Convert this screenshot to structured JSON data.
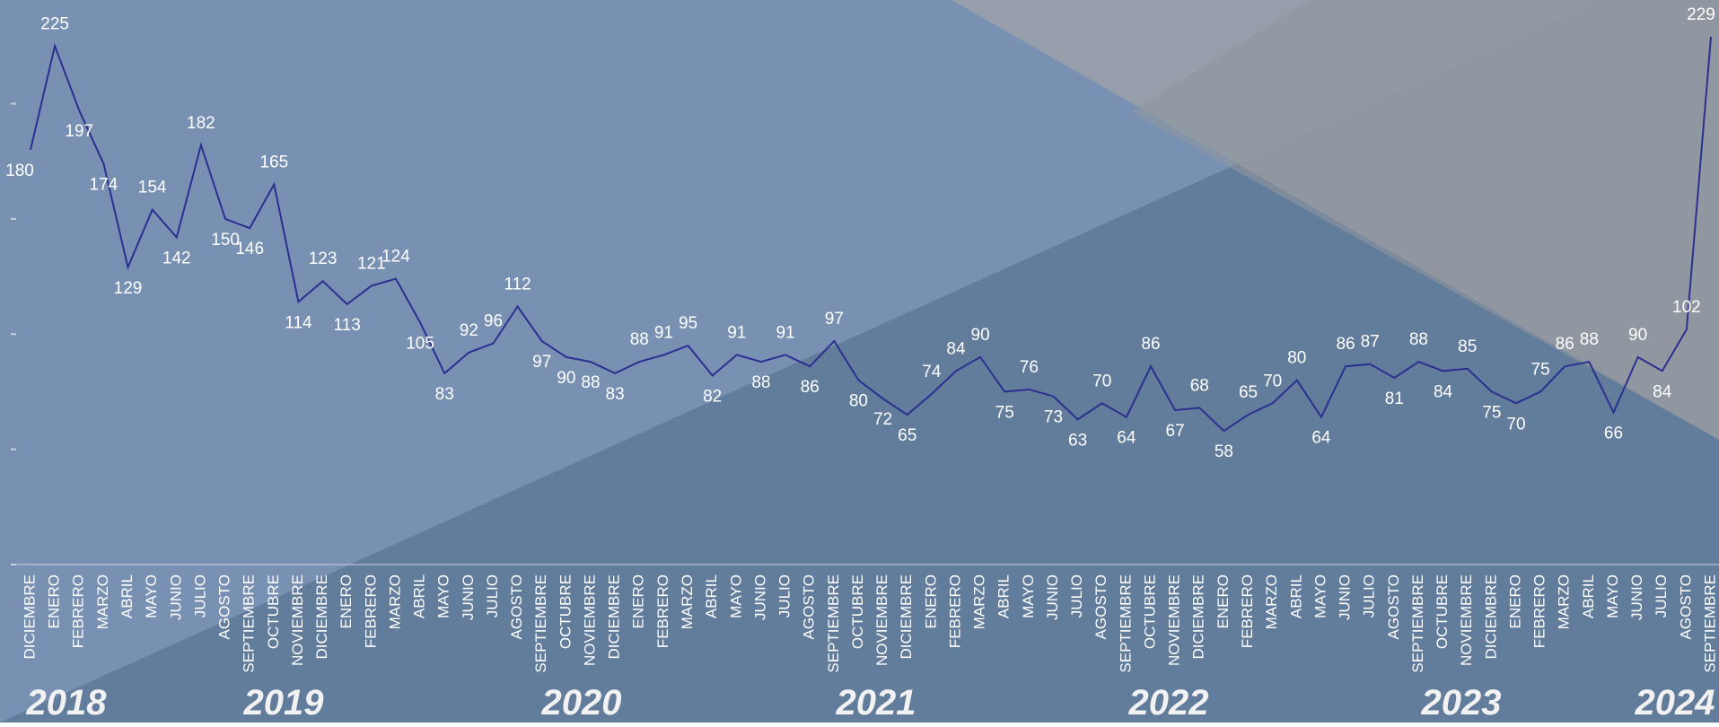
{
  "chart_data": {
    "type": "line",
    "color": "#2b2f8f",
    "categories": [
      "DICIEMBRE",
      "ENERO",
      "FEBRERO",
      "MARZO",
      "ABRIL",
      "MAYO",
      "JUNIO",
      "JULIO",
      "AGOSTO",
      "SEPTIEMBRE",
      "OCTUBRE",
      "NOVIEMBRE",
      "DICIEMBRE",
      "ENERO",
      "FEBRERO",
      "MARZO",
      "ABRIL",
      "MAYO",
      "JUNIO",
      "JULIO",
      "AGOSTO",
      "SEPTIEMBRE",
      "OCTUBRE",
      "NOVIEMBRE",
      "DICIEMBRE",
      "ENERO",
      "FEBRERO",
      "MARZO",
      "ABRIL",
      "MAYO",
      "JUNIO",
      "JULIO",
      "AGOSTO",
      "SEPTIEMBRE",
      "OCTUBRE",
      "NOVIEMBRE",
      "DICIEMBRE",
      "ENERO",
      "FEBRERO",
      "MARZO",
      "ABRIL",
      "MAYO",
      "JUNIO",
      "JULIO",
      "AGOSTO",
      "SEPTIEMBRE",
      "OCTUBRE",
      "NOVIEMBRE",
      "DICIEMBRE",
      "ENERO",
      "FEBRERO",
      "MARZO",
      "ABRIL",
      "MAYO",
      "JUNIO",
      "JULIO",
      "AGOSTO",
      "SEPTIEMBRE",
      "OCTUBRE",
      "NOVIEMBRE",
      "DICIEMBRE",
      "ENERO",
      "FEBRERO",
      "MARZO",
      "ABRIL",
      "MAYO",
      "JUNIO",
      "JULIO",
      "AGOSTO",
      "SEPTIEMBRE"
    ],
    "values": [
      180,
      225,
      197,
      174,
      129,
      154,
      142,
      182,
      150,
      146,
      165,
      114,
      123,
      113,
      121,
      124,
      105,
      83,
      92,
      96,
      112,
      97,
      90,
      88,
      83,
      88,
      91,
      95,
      82,
      91,
      88,
      91,
      86,
      97,
      80,
      72,
      65,
      74,
      84,
      90,
      75,
      76,
      73,
      63,
      70,
      64,
      86,
      67,
      68,
      58,
      65,
      70,
      80,
      64,
      86,
      87,
      81,
      88,
      84,
      85,
      75,
      70,
      75,
      86,
      88,
      66,
      90,
      84,
      102,
      229
    ],
    "ylim": [
      0,
      245
    ],
    "yticks": [
      0,
      50,
      100,
      150,
      200
    ],
    "annotations": [
      "2018",
      "2019",
      "2020",
      "2021",
      "2022",
      "2023",
      "2024"
    ]
  }
}
